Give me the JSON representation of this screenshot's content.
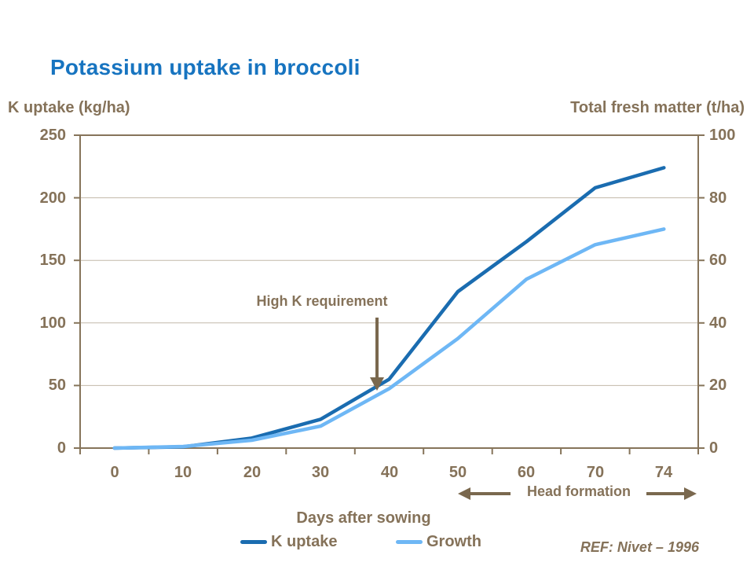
{
  "colors": {
    "title_blue": "#1774C0",
    "text_brown": "#857259",
    "axis_brown": "#86745A",
    "gridline": "#C2B8AA",
    "arrow_brown": "#7A684E",
    "background": "#FFFFFF"
  },
  "chart_data": {
    "type": "line",
    "title": "Potassium uptake in broccoli",
    "x_label": "Days after sowing",
    "x_categories": [
      "0",
      "10",
      "20",
      "30",
      "40",
      "50",
      "60",
      "70",
      "74"
    ],
    "y_left": {
      "label": "K uptake (kg/ha)",
      "min": 0,
      "max": 250,
      "ticks": [
        "250",
        "200",
        "150",
        "100",
        "50",
        "0"
      ],
      "gridline_values": [
        200,
        150,
        100,
        50
      ]
    },
    "y_right": {
      "label": "Total fresh matter (t/ha)",
      "min": 0,
      "max": 100,
      "ticks": [
        "100",
        "80",
        "60",
        "40",
        "20",
        "0"
      ]
    },
    "series": [
      {
        "name": "K uptake",
        "axis": "left",
        "color": "#1A6CB0",
        "values": [
          0,
          1,
          8,
          23,
          55,
          125,
          165,
          208,
          224
        ]
      },
      {
        "name": "Growth",
        "axis": "right",
        "color": "#6EB7F5",
        "values": [
          0,
          0.5,
          2.5,
          7,
          19,
          35,
          54,
          65,
          70
        ]
      }
    ],
    "annotations": {
      "high_k": {
        "text": "High K requirement"
      },
      "head_formation": {
        "text": "Head formation"
      }
    },
    "grid": "horizontal",
    "legend_position": "bottom",
    "reference": "REF: Nivet – 1996"
  }
}
